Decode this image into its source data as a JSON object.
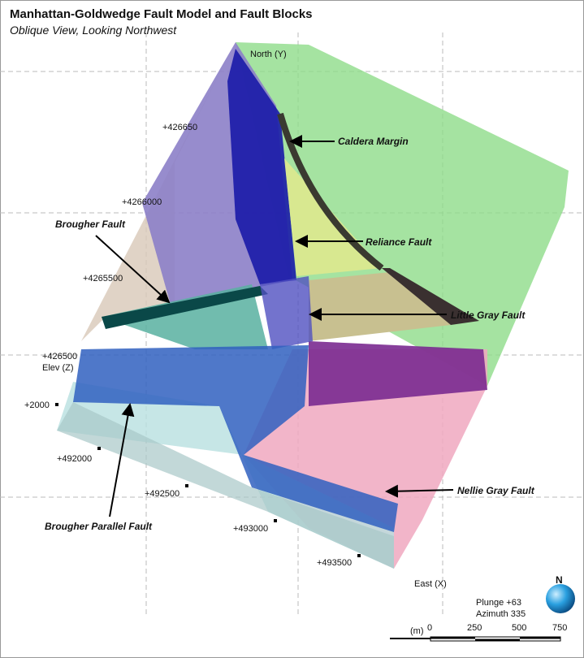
{
  "header": {
    "title": "Manhattan-Goldwedge Fault Model and Fault Blocks",
    "subtitle": "Oblique View, Looking Northwest"
  },
  "axes": {
    "north": "North (Y)",
    "east": "East (X)",
    "elev": "Elev (Z)",
    "northing": [
      "+426650",
      "+4266000",
      "+4265500",
      "+426500"
    ],
    "easting": [
      "+492000",
      "+492500",
      "+493000",
      "+493500"
    ],
    "elevation": [
      "+2000"
    ]
  },
  "faults": [
    {
      "label": "Caldera Margin"
    },
    {
      "label": "Reliance Fault"
    },
    {
      "label": "Little Gray Fault"
    },
    {
      "label": "Brougher Fault"
    },
    {
      "label": "Nellie Gray Fault"
    },
    {
      "label": "Brougher Parallel Fault"
    }
  ],
  "view": {
    "compass": "N",
    "plunge": "Plunge +63",
    "azimuth": "Azimuth 335"
  },
  "scale": {
    "unit": "(m)",
    "ticks": [
      0,
      250,
      500,
      750
    ]
  }
}
